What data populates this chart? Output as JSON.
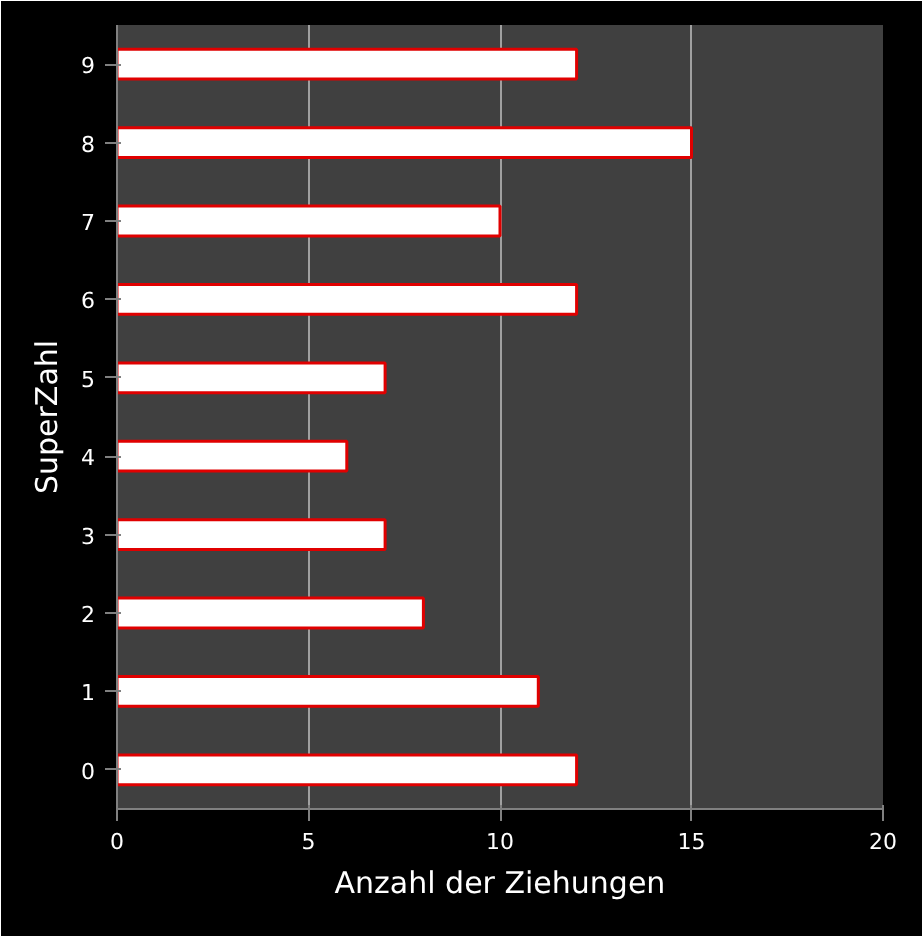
{
  "chart_data": {
    "type": "bar",
    "orientation": "horizontal",
    "xlabel": "Anzahl der Ziehungen",
    "ylabel": "SuperZahl",
    "categories": [
      "9",
      "8",
      "7",
      "6",
      "5",
      "4",
      "3",
      "2",
      "1",
      "0"
    ],
    "values": [
      12,
      15,
      10,
      12,
      7,
      6,
      7,
      8,
      11,
      12
    ],
    "color": "#ffffff",
    "xlim": [
      0,
      20
    ],
    "xticks": [
      0,
      5,
      10,
      15,
      20
    ],
    "grid": "x"
  }
}
